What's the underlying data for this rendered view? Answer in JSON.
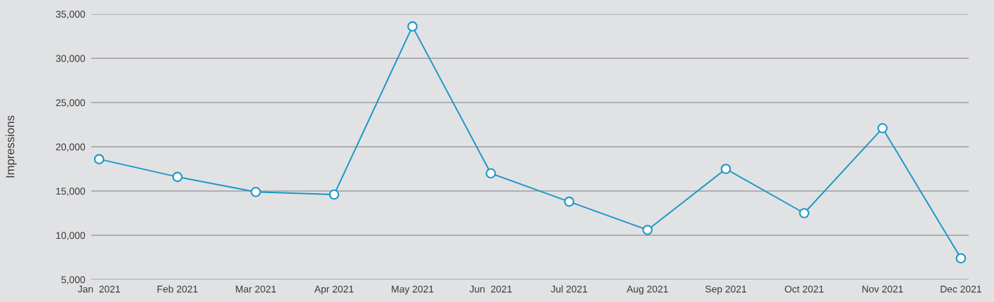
{
  "chart_data": {
    "type": "line",
    "ylabel": "Impressions",
    "categories": [
      "Jan  2021",
      "Feb 2021",
      "Mar 2021",
      "Apr 2021",
      "May 2021",
      "Jun  2021",
      "Jul 2021",
      "Aug 2021",
      "Sep 2021",
      "Oct 2021",
      "Nov 2021",
      "Dec 2021"
    ],
    "series": [
      {
        "color": "#1a96c8",
        "values": [
          18600,
          16600,
          14900,
          14600,
          33600,
          17000,
          13800,
          10600,
          17500,
          12500,
          22100,
          7400
        ]
      }
    ],
    "ylim": [
      5000,
      35000
    ],
    "yticks": [
      {
        "value": 5000,
        "label": "5,000"
      },
      {
        "value": 10000,
        "label": "10,000"
      },
      {
        "value": 15000,
        "label": "15,000"
      },
      {
        "value": 20000,
        "label": "20,000"
      },
      {
        "value": 25000,
        "label": "25,000"
      },
      {
        "value": 30000,
        "label": "30,000"
      },
      {
        "value": 35000,
        "label": "35,000"
      }
    ],
    "grid": "y",
    "marker": "circle",
    "line_style": "solid"
  }
}
